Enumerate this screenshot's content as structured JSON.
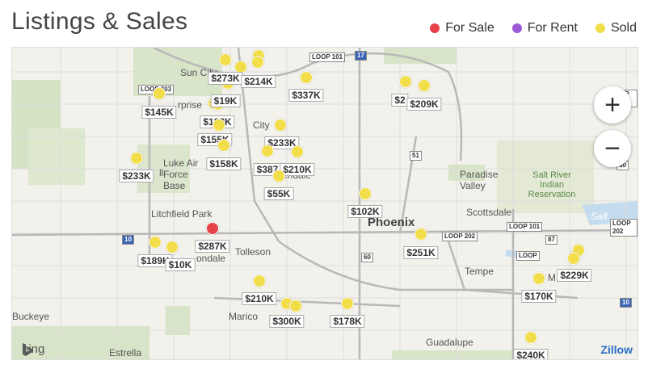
{
  "title": "Listings & Sales",
  "legend": [
    {
      "label": "For Sale",
      "color": "#e8414a"
    },
    {
      "label": "For Rent",
      "color": "#9b59d6"
    },
    {
      "label": "Sold",
      "color": "#f2de4a"
    }
  ],
  "map": {
    "zoom_in": "+",
    "zoom_out": "−",
    "attribution": "bing",
    "brand": "Zillow",
    "places": {
      "sun_city": "Sun City",
      "surprise": "rprise",
      "city": "City",
      "glendale": "Glendale",
      "peoria_frag": "P",
      "luke_air": "Luke Air Force Base",
      "litchfield_park": "Litchfield Park",
      "avondale": "ondale",
      "tolleson": "Tolleson",
      "phoenix": "Phoenix",
      "scottsdale": "Scottsdale",
      "paradise_valley": "Paradise Valley",
      "salt_river": "Salt River Indian Reservation",
      "tempe": "Tempe",
      "salt": "Salt",
      "buckeye": "Buckeye",
      "maricopa": "Marico",
      "guadalupe": "Guadalupe",
      "estrella": "Estrella",
      "ll": "ll",
      "m": "M"
    },
    "highways": [
      "LOOP 101",
      "LOOP 303",
      "17",
      "51",
      "10",
      "60",
      "LOOP 202",
      "LOOP 101",
      "87",
      "LOOP 202",
      "10",
      "LOOP",
      "LOOP 202",
      "60",
      "LOOP"
    ],
    "prices": [
      "$273K",
      "$214K",
      "$337K",
      "$2",
      "$209K",
      "$145K",
      "$19K",
      "$188K",
      "$155K",
      "$233K",
      "$158K",
      "$387",
      "$210K",
      "$233K",
      "$55K",
      "$102K",
      "$287K",
      "$189K",
      "$10K",
      "$251K",
      "$229K",
      "$210K",
      "$170K",
      "$300K",
      "$178K",
      "$240K"
    ],
    "listing_status": {
      "sale": 1,
      "rent": 0,
      "sold": 37
    }
  }
}
